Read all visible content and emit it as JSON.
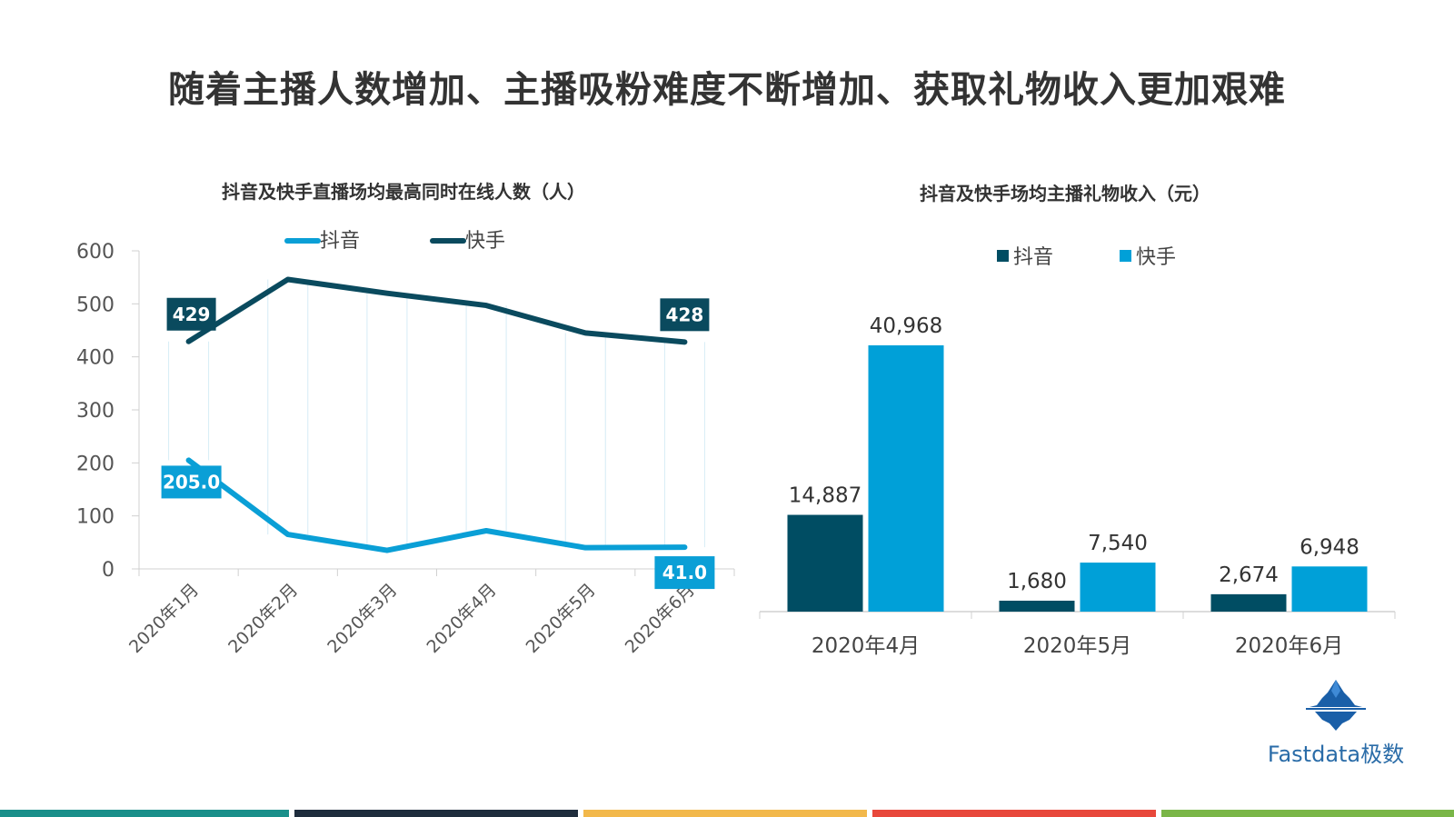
{
  "page": {
    "title": "随着主播人数增加、主播吸粉难度不断增加、获取礼物收入更加艰难"
  },
  "chart_data": [
    {
      "type": "line",
      "title": "抖音及快手直播场均最高同时在线人数（人）",
      "categories": [
        "2020年1月",
        "2020年2月",
        "2020年3月",
        "2020年4月",
        "2020年5月",
        "2020年6月"
      ],
      "series": [
        {
          "name": "抖音",
          "color": "#0a9fd6",
          "values": [
            205,
            65,
            35,
            72,
            40,
            41
          ]
        },
        {
          "name": "快手",
          "color": "#0a4a5e",
          "values": [
            429,
            546,
            520,
            497,
            445,
            428
          ]
        }
      ],
      "data_labels": [
        {
          "series": "快手",
          "index": 0,
          "text": "429"
        },
        {
          "series": "快手",
          "index": 5,
          "text": "428"
        },
        {
          "series": "抖音",
          "index": 0,
          "text": "205.0"
        },
        {
          "series": "抖音",
          "index": 5,
          "text": "41.0"
        }
      ],
      "ylim": [
        0,
        600
      ],
      "yticks": [
        0,
        100,
        200,
        300,
        400,
        500,
        600
      ],
      "legend_position": "top-center",
      "grid": false
    },
    {
      "type": "bar",
      "title": "抖音及快手场均主播礼物收入（元）",
      "categories": [
        "2020年4月",
        "2020年5月",
        "2020年6月"
      ],
      "series": [
        {
          "name": "抖音",
          "color": "#004d63",
          "values": [
            14887,
            1680,
            2674
          ],
          "labels": [
            "14,887",
            "1,680",
            "2,674"
          ]
        },
        {
          "name": "快手",
          "color": "#00a0d8",
          "values": [
            40968,
            7540,
            6948
          ],
          "labels": [
            "40,968",
            "7,540",
            "6,948"
          ]
        }
      ],
      "legend_position": "top-center",
      "grid": false
    }
  ],
  "logo": {
    "text": "Fastdata极数"
  },
  "footer": {
    "colors": [
      "#1a8f8a",
      "#1f2d3d",
      "#f2b84b",
      "#e8483b",
      "#7ab648"
    ]
  }
}
